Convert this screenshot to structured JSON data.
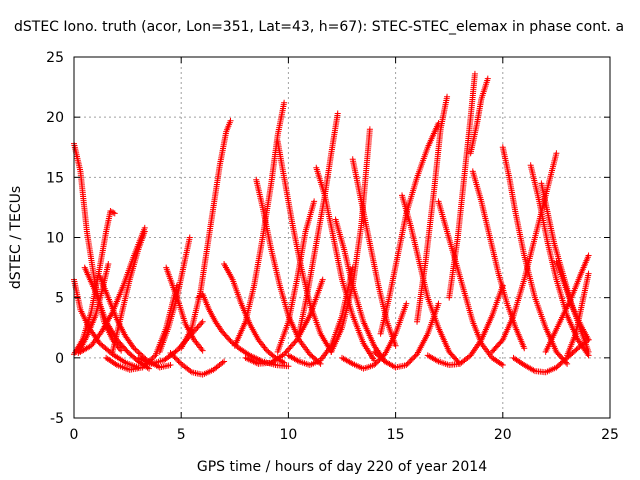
{
  "chart_data": {
    "type": "scatter",
    "title": "dSTEC Iono. truth (acor, Lon=351, Lat=43, h=67): STEC-STEC_elemax in phase cont. a",
    "xlabel": "GPS time / hours of day 220 of year 2014",
    "ylabel": "dSTEC  / TECUs",
    "xlim": [
      0,
      25
    ],
    "ylim": [
      -5,
      25
    ],
    "xticks": [
      "0",
      "5",
      "10",
      "15",
      "20",
      "25"
    ],
    "yticks": [
      "-5",
      "0",
      "5",
      "10",
      "15",
      "20",
      "25"
    ],
    "grid": true,
    "marker": "+",
    "color": "#ff0000",
    "arcs": [
      {
        "x": [
          0.0,
          0.3,
          0.6,
          1.0,
          1.4,
          1.8,
          2.2
        ],
        "y": [
          17.8,
          15.5,
          10.5,
          6.0,
          3.0,
          1.5,
          0.6
        ]
      },
      {
        "x": [
          0.0,
          0.3,
          0.7,
          1.2,
          1.8,
          2.4,
          3.0
        ],
        "y": [
          6.5,
          4.0,
          2.5,
          1.2,
          0.3,
          -0.4,
          -0.8
        ]
      },
      {
        "x": [
          0.0,
          0.4,
          0.8,
          1.2,
          1.5,
          1.7,
          1.9
        ],
        "y": [
          0.3,
          1.5,
          3.8,
          7.5,
          10.5,
          12.2,
          12.0
        ]
      },
      {
        "x": [
          0.2,
          0.6,
          1.0,
          1.3,
          1.6
        ],
        "y": [
          0.4,
          1.8,
          3.5,
          5.5,
          7.8
        ]
      },
      {
        "x": [
          0.3,
          0.8,
          1.3,
          1.8,
          2.3,
          2.8,
          3.3
        ],
        "y": [
          0.5,
          1.0,
          2.2,
          3.8,
          6.0,
          8.5,
          10.8
        ]
      },
      {
        "x": [
          0.5,
          1.0,
          1.5,
          2.0,
          2.5,
          3.0,
          3.5
        ],
        "y": [
          7.5,
          5.5,
          3.0,
          1.5,
          0.5,
          -0.3,
          -0.9
        ]
      },
      {
        "x": [
          1.2,
          1.6,
          2.0,
          2.4,
          2.8,
          3.4,
          4.0,
          4.5
        ],
        "y": [
          6.8,
          5.0,
          3.2,
          1.8,
          0.8,
          -0.2,
          -0.8,
          -0.6
        ]
      },
      {
        "x": [
          1.5,
          2.0,
          2.6,
          3.2,
          3.8,
          4.3,
          4.8
        ],
        "y": [
          0.0,
          -0.6,
          -1.0,
          -0.8,
          0.2,
          2.5,
          6.0
        ]
      },
      {
        "x": [
          1.8,
          2.2,
          2.6,
          3.0,
          3.3
        ],
        "y": [
          0.5,
          3.5,
          6.5,
          9.0,
          10.5
        ]
      },
      {
        "x": [
          3.0,
          3.6,
          4.2,
          4.8,
          5.4,
          6.0
        ],
        "y": [
          0.0,
          -0.5,
          -0.2,
          0.6,
          1.8,
          3.0
        ]
      },
      {
        "x": [
          4.3,
          4.6,
          4.9,
          5.2,
          5.6,
          6.0
        ],
        "y": [
          7.5,
          6.0,
          4.5,
          2.8,
          1.5,
          0.6
        ]
      },
      {
        "x": [
          4.0,
          4.4,
          4.8,
          5.1,
          5.4
        ],
        "y": [
          0.5,
          2.5,
          5.0,
          7.5,
          10.0
        ]
      },
      {
        "x": [
          4.5,
          5.0,
          5.5,
          6.0,
          6.5,
          7.0
        ],
        "y": [
          0.4,
          -0.5,
          -1.2,
          -1.4,
          -1.0,
          -0.3
        ]
      },
      {
        "x": [
          5.8,
          6.0,
          6.3,
          6.6,
          6.9,
          7.3,
          7.7,
          8.2,
          8.8,
          9.4,
          10.0
        ],
        "y": [
          5.0,
          5.3,
          4.0,
          3.0,
          2.2,
          1.4,
          0.8,
          0.2,
          -0.3,
          -0.6,
          -0.7
        ]
      },
      {
        "x": [
          5.0,
          5.5,
          5.9,
          6.2,
          6.5,
          6.8,
          7.1,
          7.3
        ],
        "y": [
          0.8,
          2.5,
          5.5,
          9.0,
          12.5,
          16.0,
          18.8,
          19.7
        ]
      },
      {
        "x": [
          7.0,
          7.4,
          7.8,
          8.2,
          8.6,
          9.0,
          9.4,
          9.8
        ],
        "y": [
          7.8,
          6.5,
          4.5,
          2.8,
          1.5,
          0.6,
          0.0,
          -0.4
        ]
      },
      {
        "x": [
          7.5,
          8.0,
          8.4,
          8.8,
          9.2,
          9.5,
          9.8
        ],
        "y": [
          1.0,
          3.0,
          6.0,
          10.0,
          14.5,
          18.5,
          21.2
        ]
      },
      {
        "x": [
          8.5,
          8.8,
          9.2,
          9.6,
          10.0,
          10.5,
          11.0,
          11.5
        ],
        "y": [
          14.8,
          12.5,
          9.0,
          6.0,
          3.5,
          1.5,
          0.3,
          -0.5
        ]
      },
      {
        "x": [
          8.0,
          8.6,
          9.2,
          9.8,
          10.4,
          11.0,
          11.6
        ],
        "y": [
          0.0,
          -0.5,
          -0.4,
          0.3,
          1.5,
          3.5,
          6.5
        ]
      },
      {
        "x": [
          9.5,
          9.8,
          10.2,
          10.6,
          11.0,
          11.5,
          12.0
        ],
        "y": [
          18.0,
          15.0,
          11.0,
          7.5,
          4.5,
          2.0,
          0.5
        ]
      },
      {
        "x": [
          9.5,
          10.0,
          10.4,
          10.8,
          11.2
        ],
        "y": [
          0.5,
          3.0,
          6.5,
          10.5,
          13.0
        ]
      },
      {
        "x": [
          10.0,
          10.5,
          11.0,
          11.5,
          12.0,
          12.5,
          13.0
        ],
        "y": [
          0.2,
          -0.3,
          -0.6,
          -0.2,
          1.0,
          3.5,
          7.5
        ]
      },
      {
        "x": [
          10.5,
          10.9,
          11.3,
          11.7,
          12.0,
          12.3
        ],
        "y": [
          2.0,
          5.5,
          9.5,
          13.5,
          17.0,
          20.3
        ]
      },
      {
        "x": [
          11.3,
          11.7,
          12.1,
          12.5,
          13.0,
          13.5,
          14.0
        ],
        "y": [
          15.8,
          13.5,
          10.0,
          6.5,
          3.5,
          1.2,
          -0.2
        ]
      },
      {
        "x": [
          12.0,
          12.5,
          13.0,
          13.4,
          13.8
        ],
        "y": [
          0.5,
          2.5,
          6.0,
          11.0,
          19.0
        ]
      },
      {
        "x": [
          12.2,
          12.6,
          13.0,
          13.5,
          14.0,
          14.5
        ],
        "y": [
          11.5,
          9.0,
          6.0,
          3.0,
          1.0,
          -0.3
        ]
      },
      {
        "x": [
          12.5,
          13.0,
          13.5,
          14.0,
          14.5,
          15.0,
          15.5
        ],
        "y": [
          0.0,
          -0.5,
          -0.9,
          -0.6,
          0.3,
          2.0,
          4.5
        ]
      },
      {
        "x": [
          13.0,
          13.4,
          13.8,
          14.2,
          14.6,
          15.0
        ],
        "y": [
          16.5,
          13.0,
          9.5,
          6.0,
          3.0,
          1.0
        ]
      },
      {
        "x": [
          14.0,
          14.5,
          15.0,
          15.5,
          16.0,
          16.5,
          17.0
        ],
        "y": [
          0.5,
          -0.3,
          -0.8,
          -0.6,
          0.3,
          2.0,
          4.5
        ]
      },
      {
        "x": [
          14.3,
          14.7,
          15.1,
          15.5,
          16.0,
          16.5,
          17.0
        ],
        "y": [
          2.0,
          5.0,
          8.5,
          12.0,
          15.0,
          17.5,
          19.5
        ]
      },
      {
        "x": [
          15.3,
          15.7,
          16.1,
          16.5,
          17.0,
          17.5,
          18.0
        ],
        "y": [
          13.5,
          11.0,
          8.0,
          5.0,
          2.5,
          0.5,
          -0.5
        ]
      },
      {
        "x": [
          16.0,
          16.4,
          16.8,
          17.1,
          17.4
        ],
        "y": [
          3.0,
          8.0,
          14.0,
          19.0,
          21.7
        ]
      },
      {
        "x": [
          16.5,
          17.0,
          17.5,
          18.0,
          18.5,
          19.0,
          19.5,
          20.0
        ],
        "y": [
          0.2,
          -0.3,
          -0.6,
          -0.5,
          0.2,
          1.5,
          3.5,
          6.0
        ]
      },
      {
        "x": [
          17.0,
          17.4,
          17.8,
          18.2,
          18.6,
          19.0,
          19.5,
          20.0
        ],
        "y": [
          13.0,
          10.5,
          8.0,
          5.5,
          3.0,
          1.2,
          0.0,
          -0.6
        ]
      },
      {
        "x": [
          17.5,
          17.9,
          18.2,
          18.5,
          18.7
        ],
        "y": [
          5.0,
          10.0,
          15.0,
          20.0,
          23.6
        ]
      },
      {
        "x": [
          18.5,
          18.8,
          19.0,
          19.3
        ],
        "y": [
          17.0,
          19.5,
          21.5,
          23.2
        ]
      },
      {
        "x": [
          18.6,
          19.0,
          19.4,
          19.8,
          20.2,
          20.6,
          21.0
        ],
        "y": [
          15.5,
          13.0,
          10.0,
          7.0,
          4.5,
          2.5,
          0.8
        ]
      },
      {
        "x": [
          19.5,
          20.0,
          20.5,
          21.0,
          21.5,
          22.0,
          22.5
        ],
        "y": [
          0.5,
          1.5,
          3.5,
          6.5,
          10.0,
          13.5,
          17.0
        ]
      },
      {
        "x": [
          20.0,
          20.3,
          20.6,
          21.0,
          21.5,
          22.0,
          22.5,
          23.0
        ],
        "y": [
          17.5,
          15.0,
          12.0,
          8.5,
          5.0,
          2.5,
          0.5,
          -0.5
        ]
      },
      {
        "x": [
          20.5,
          21.0,
          21.5,
          22.0,
          22.5,
          23.0,
          23.5,
          24.0
        ],
        "y": [
          0.0,
          -0.6,
          -1.1,
          -1.2,
          -0.8,
          0.0,
          0.8,
          1.5
        ]
      },
      {
        "x": [
          21.3,
          21.7,
          22.1,
          22.5,
          23.0,
          23.5,
          24.0
        ],
        "y": [
          16.0,
          13.0,
          9.5,
          6.5,
          3.5,
          1.5,
          0.2
        ]
      },
      {
        "x": [
          21.8,
          22.1,
          22.4,
          22.8,
          23.2,
          23.6,
          24.0
        ],
        "y": [
          14.5,
          12.0,
          9.5,
          7.0,
          4.5,
          2.5,
          0.5
        ]
      },
      {
        "x": [
          22.0,
          22.4,
          22.8,
          23.2,
          23.6,
          24.0
        ],
        "y": [
          0.5,
          2.0,
          3.5,
          5.0,
          6.8,
          8.5
        ]
      },
      {
        "x": [
          22.5,
          22.9,
          23.3,
          23.7,
          24.0
        ],
        "y": [
          8.0,
          6.0,
          4.0,
          2.5,
          1.5
        ]
      },
      {
        "x": [
          23.0,
          23.4,
          23.7,
          24.0
        ],
        "y": [
          0.2,
          2.0,
          4.5,
          7.0
        ]
      }
    ]
  }
}
